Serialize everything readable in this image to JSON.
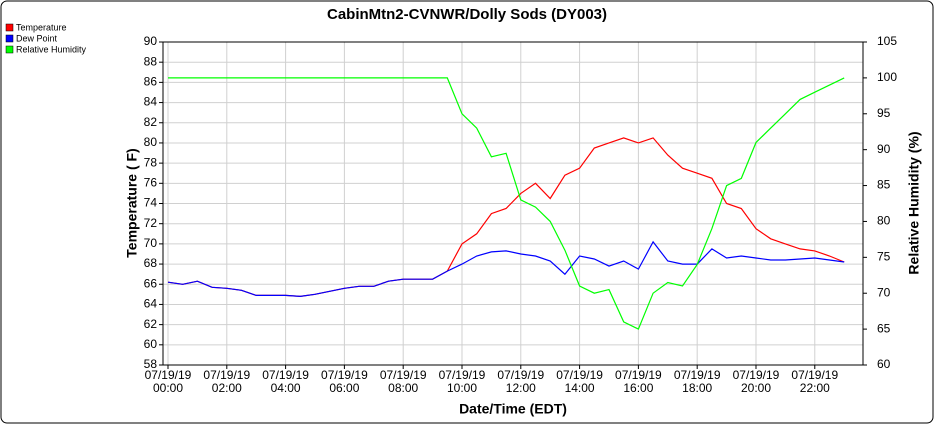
{
  "chart_data": {
    "type": "line",
    "title": "CabinMtn2-CVNWR/Dolly Sods (DY003)",
    "xlabel": "Date/Time (EDT)",
    "ylabel": "Temperature ( F)",
    "y2label": "Relative Humidity (%)",
    "x": [
      0,
      0.5,
      1,
      1.5,
      2,
      2.5,
      3,
      3.5,
      4,
      4.5,
      5,
      5.5,
      6,
      6.5,
      7,
      7.5,
      8,
      8.5,
      9,
      9.5,
      10,
      10.5,
      11,
      11.5,
      12,
      12.5,
      13,
      13.5,
      14,
      14.5,
      15,
      15.5,
      16,
      16.5,
      17,
      17.5,
      18,
      18.5,
      19,
      19.5,
      20,
      20.5,
      21,
      21.5,
      22,
      22.5,
      23
    ],
    "series": [
      {
        "name": "Temperature",
        "color": "#ff0000",
        "values": [
          66.2,
          66.0,
          66.3,
          65.7,
          65.6,
          65.4,
          64.9,
          64.9,
          64.9,
          64.8,
          65.0,
          65.3,
          65.6,
          65.8,
          65.8,
          66.3,
          66.5,
          66.5,
          66.5,
          67.3,
          70.0,
          71.0,
          73.0,
          73.5,
          75.0,
          76.0,
          74.5,
          76.8,
          77.5,
          79.5,
          80.0,
          80.5,
          80.0,
          80.5,
          78.8,
          77.5,
          77.0,
          76.5,
          74.0,
          73.5,
          71.5,
          70.5,
          70.0,
          69.5,
          69.3,
          68.8,
          68.2
        ]
      },
      {
        "name": "Dew Point",
        "color": "#0000ff",
        "values": [
          66.2,
          66.0,
          66.3,
          65.7,
          65.6,
          65.4,
          64.9,
          64.9,
          64.9,
          64.8,
          65.0,
          65.3,
          65.6,
          65.8,
          65.8,
          66.3,
          66.5,
          66.5,
          66.5,
          67.3,
          68.0,
          68.8,
          69.2,
          69.3,
          69.0,
          68.8,
          68.3,
          67.0,
          68.8,
          68.5,
          67.8,
          68.3,
          67.5,
          70.2,
          68.3,
          68.0,
          68.0,
          69.5,
          68.6,
          68.8,
          68.6,
          68.4,
          68.4,
          68.5,
          68.6,
          68.4,
          68.2
        ]
      },
      {
        "name": "Relative Humidity",
        "color": "#00ff00",
        "axis": "y2",
        "values": [
          100,
          100,
          100,
          100,
          100,
          100,
          100,
          100,
          100,
          100,
          100,
          100,
          100,
          100,
          100,
          100,
          100,
          100,
          100,
          100,
          95,
          93,
          89,
          89.5,
          83,
          82,
          80,
          76,
          71,
          70,
          70.5,
          66,
          65,
          70,
          71.5,
          71,
          74,
          79,
          85,
          86,
          91,
          93,
          95,
          97,
          98,
          99,
          100
        ]
      }
    ],
    "xlim": [
      -0.17,
      23.64
    ],
    "xticks": [
      {
        "value": 0,
        "label": "07/19/19 00:00"
      },
      {
        "value": 2,
        "label": "07/19/19 02:00"
      },
      {
        "value": 4,
        "label": "07/19/19 04:00"
      },
      {
        "value": 6,
        "label": "07/19/19 06:00"
      },
      {
        "value": 8,
        "label": "07/19/19 08:00"
      },
      {
        "value": 10,
        "label": "07/19/19 10:00"
      },
      {
        "value": 12,
        "label": "07/19/19 12:00"
      },
      {
        "value": 14,
        "label": "07/19/19 14:00"
      },
      {
        "value": 16,
        "label": "07/19/19 16:00"
      },
      {
        "value": 18,
        "label": "07/19/19 18:00"
      },
      {
        "value": 20,
        "label": "07/19/19 20:00"
      },
      {
        "value": 22,
        "label": "07/19/19 22:00"
      }
    ],
    "ylim": [
      58,
      90
    ],
    "yticks": [
      58,
      60,
      62,
      64,
      66,
      68,
      70,
      72,
      74,
      76,
      78,
      80,
      82,
      84,
      86,
      88,
      90
    ],
    "y2lim": [
      60,
      105
    ],
    "y2ticks": [
      60,
      65,
      70,
      75,
      80,
      85,
      90,
      95,
      100,
      105
    ],
    "grid": true
  }
}
